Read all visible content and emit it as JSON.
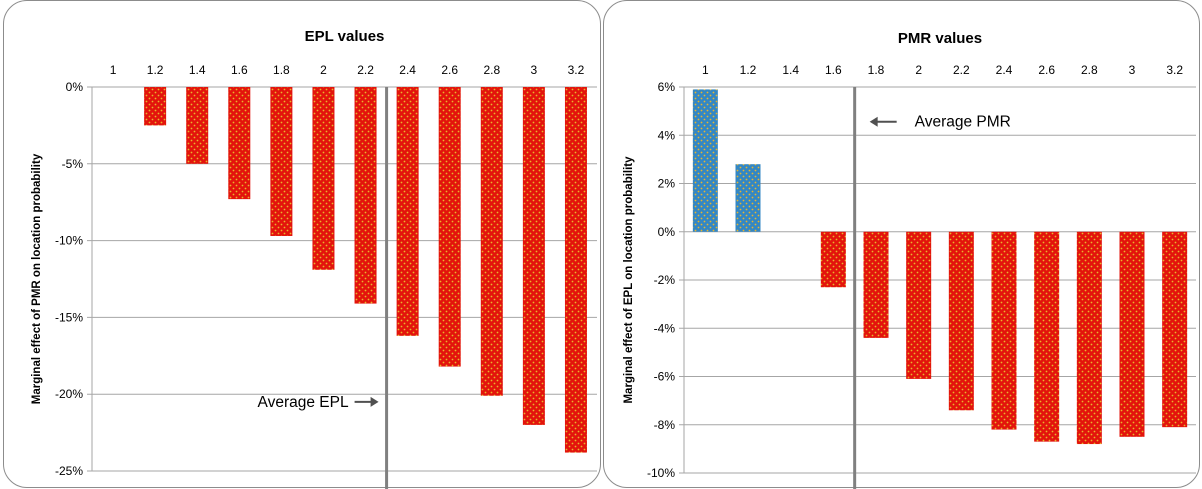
{
  "colors": {
    "negative_bar": "#e3140c",
    "positive_bar": "#3387c4",
    "dots": "#e8b52c",
    "grid": "#a6a6a6",
    "average_line": "#808080"
  },
  "chart_data": [
    {
      "type": "bar",
      "title": "EPL values",
      "ylabel": "Marginal effect of PMR on location probability",
      "xlabel": "",
      "categories": [
        "1",
        "1.2",
        "1.4",
        "1.6",
        "1.8",
        "2",
        "2.2",
        "2.4",
        "2.6",
        "2.8",
        "3",
        "3.2"
      ],
      "values": [
        0,
        -2.5,
        -5.0,
        -7.3,
        -9.7,
        -11.9,
        -14.1,
        -16.2,
        -18.2,
        -20.1,
        -22.0,
        -23.8
      ],
      "ylim": [
        -25,
        0
      ],
      "yticks": [
        0,
        -5,
        -10,
        -15,
        -20,
        -25
      ],
      "ytick_labels": [
        "0%",
        "-5%",
        "-10%",
        "-15%",
        "-20%",
        "-25%"
      ],
      "grid": true,
      "x_axis_position": "top",
      "average_line_after_category": "2.2",
      "annotation": {
        "text": "Average EPL",
        "arrow": "right"
      }
    },
    {
      "type": "bar",
      "title": "PMR values",
      "ylabel": "Marginal effect of EPL on location probability",
      "xlabel": "",
      "categories": [
        "1",
        "1.2",
        "1.4",
        "1.6",
        "1.8",
        "2",
        "2.2",
        "2.4",
        "2.6",
        "2.8",
        "3",
        "3.2"
      ],
      "values": [
        5.9,
        2.8,
        0,
        -2.3,
        -4.4,
        -6.1,
        -7.4,
        -8.2,
        -8.7,
        -8.8,
        -8.5,
        -8.1
      ],
      "ylim": [
        -10,
        6
      ],
      "yticks": [
        6,
        4,
        2,
        0,
        -2,
        -4,
        -6,
        -8,
        -10
      ],
      "ytick_labels": [
        "6%",
        "4%",
        "2%",
        "0%",
        "-2%",
        "-4%",
        "-6%",
        "-8%",
        "-10%"
      ],
      "grid": true,
      "x_axis_position": "top",
      "average_line_after_category": "1.6",
      "annotation": {
        "text": "Average PMR",
        "arrow": "left"
      }
    }
  ]
}
